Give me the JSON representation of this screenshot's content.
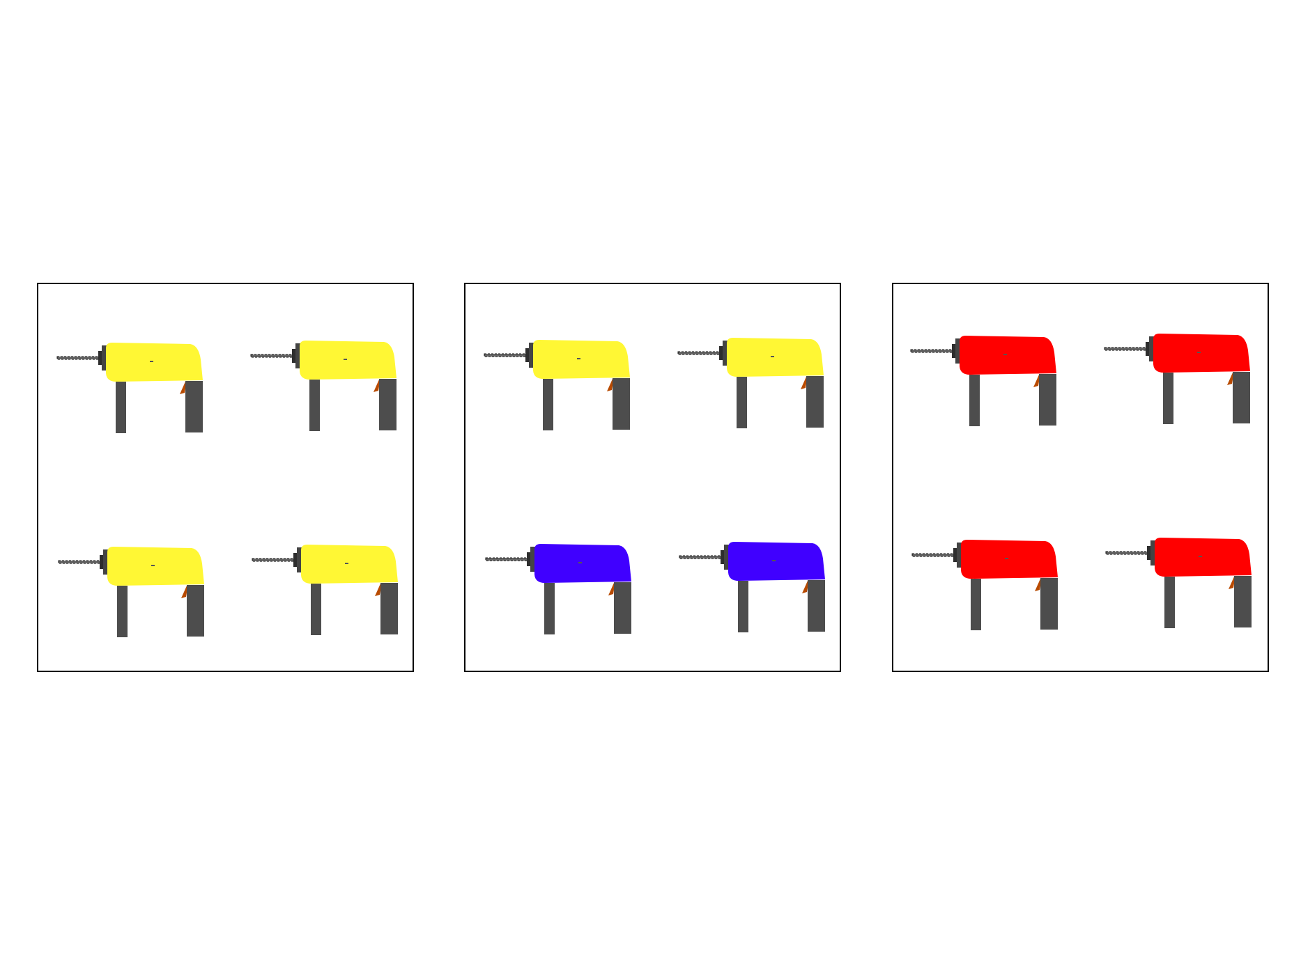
{
  "colors": {
    "yellow": "#fff734",
    "blue": "#4000ff",
    "red": "#ff0000",
    "tool_gray": "#4d4d4d",
    "chuck_dark": "#2e2e2e",
    "trigger": "#b84a00",
    "border": "#000000"
  },
  "panels": [
    {
      "drills": [
        {
          "body_color": "yellow"
        },
        {
          "body_color": "yellow"
        },
        {
          "body_color": "yellow"
        },
        {
          "body_color": "yellow"
        }
      ]
    },
    {
      "drills": [
        {
          "body_color": "yellow"
        },
        {
          "body_color": "yellow"
        },
        {
          "body_color": "blue"
        },
        {
          "body_color": "blue"
        }
      ]
    },
    {
      "drills": [
        {
          "body_color": "red"
        },
        {
          "body_color": "red"
        },
        {
          "body_color": "red"
        },
        {
          "body_color": "red"
        }
      ]
    }
  ]
}
